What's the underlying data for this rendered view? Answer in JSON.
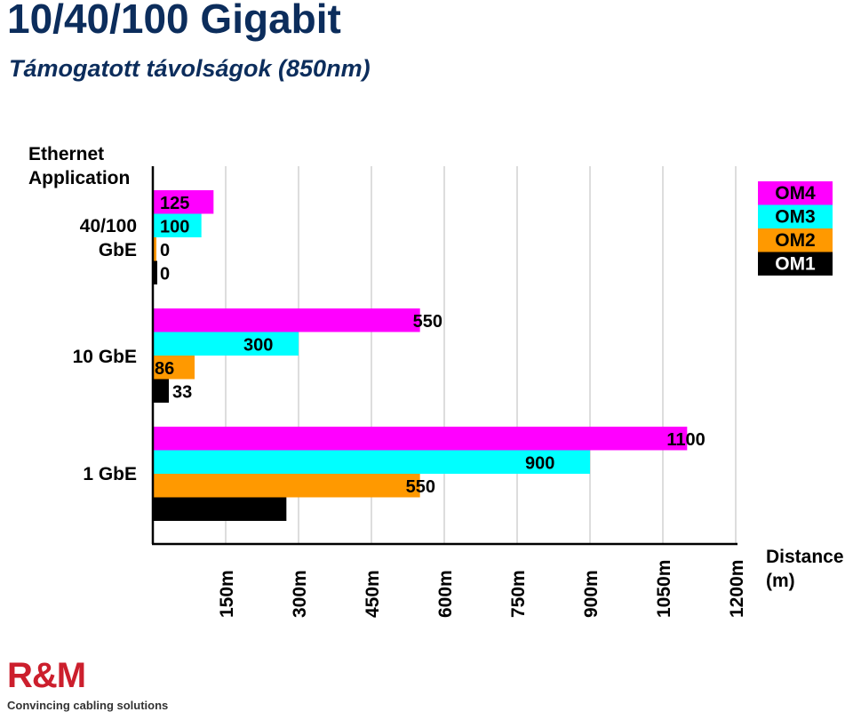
{
  "title": "10/40/100 Gigabit",
  "subtitle": "Támogatott távolságok (850nm)",
  "logo": {
    "mark": "R&M",
    "tagline": "Convincing cabling solutions"
  },
  "colors": {
    "OM4": "#ff00ff",
    "OM3": "#00ffff",
    "OM2": "#ff9900",
    "OM1": "#000000"
  },
  "chart_data": {
    "type": "bar",
    "orientation": "horizontal",
    "ylabel": [
      "Ethernet",
      "Application"
    ],
    "xlabel": [
      "Distance",
      "(m)"
    ],
    "categories": [
      [
        "40/100",
        "GbE"
      ],
      [
        "10 GbE"
      ],
      [
        "1 GbE"
      ]
    ],
    "xlim": [
      0,
      1200
    ],
    "xticks": [
      150,
      300,
      450,
      600,
      750,
      900,
      1050,
      1200
    ],
    "xtick_labels": [
      "150m",
      "300m",
      "450m",
      "600m",
      "750m",
      "900m",
      "1050m",
      "1200m"
    ],
    "grid": true,
    "legend_position": "top-right",
    "series": [
      {
        "name": "OM4",
        "color": "#ff00ff",
        "values": [
          125,
          550,
          1100
        ]
      },
      {
        "name": "OM3",
        "color": "#00ffff",
        "values": [
          100,
          300,
          900
        ]
      },
      {
        "name": "OM2",
        "color": "#ff9900",
        "values": [
          0,
          86,
          550
        ]
      },
      {
        "name": "OM1",
        "color": "#000000",
        "values": [
          0,
          33,
          275
        ]
      }
    ]
  }
}
